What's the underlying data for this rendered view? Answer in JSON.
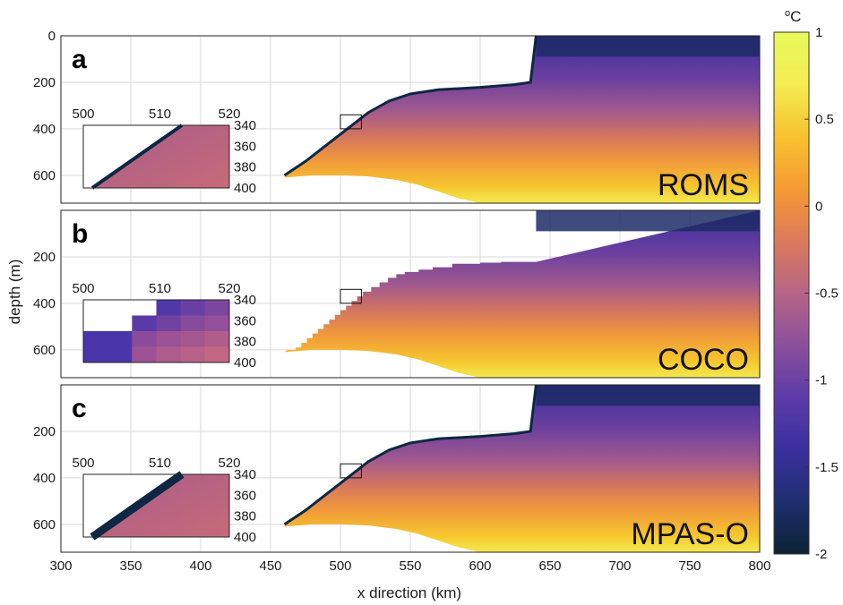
{
  "chart_data": {
    "type": "heatmap",
    "xlabel": "x direction (km)",
    "ylabel": "depth (m)",
    "xlim": [
      300,
      800
    ],
    "ylim": [
      720,
      0
    ],
    "x_ticks": [
      "300",
      "350",
      "400",
      "450",
      "500",
      "550",
      "600",
      "650",
      "700",
      "750",
      "800"
    ],
    "grid": true,
    "colorbar": {
      "unit": "°C",
      "unit_base": "o",
      "unit_letter": "C",
      "range": [
        -2,
        1
      ],
      "ticks": [
        "1",
        "0.5",
        "0",
        "-0.5",
        "-1",
        "-1.5",
        "-2"
      ],
      "colors": [
        "#0b2233",
        "#1d2f6e",
        "#3b2fa0",
        "#5c3ba8",
        "#8a4f9b",
        "#b56585",
        "#dc7a5c",
        "#f59a32",
        "#f7c22e",
        "#f4ec52",
        "#e8fa5b"
      ]
    },
    "panels": [
      {
        "letter": "a",
        "model": "ROMS",
        "y_ticks": [
          "0",
          "200",
          "400",
          "600"
        ],
        "ice_front_x_km": 640,
        "inset": {
          "x_ticks": [
            "500",
            "510",
            "520"
          ],
          "y_ticks": [
            "340",
            "360",
            "380",
            "400"
          ],
          "style": "smooth"
        }
      },
      {
        "letter": "b",
        "model": "COCO",
        "y_ticks": [
          "200",
          "400",
          "600"
        ],
        "ice_front_x_km": 640,
        "inset": {
          "x_ticks": [
            "500",
            "510",
            "520"
          ],
          "y_ticks": [
            "340",
            "360",
            "380",
            "400"
          ],
          "style": "stepped"
        }
      },
      {
        "letter": "c",
        "model": "MPAS-O",
        "y_ticks": [
          "200",
          "400",
          "600"
        ],
        "ice_front_x_km": 640,
        "inset": {
          "x_ticks": [
            "500",
            "510",
            "520"
          ],
          "y_ticks": [
            "340",
            "360",
            "380",
            "400"
          ],
          "style": "smooth"
        }
      }
    ]
  }
}
